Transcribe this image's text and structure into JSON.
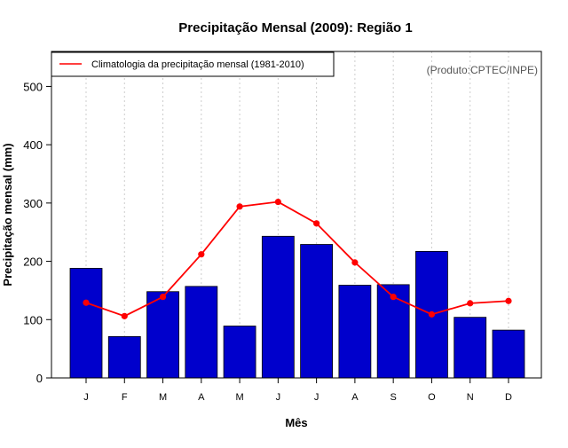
{
  "chart_data": {
    "type": "bar",
    "title": "Precipitação Mensal (2009): Região 1",
    "xlabel": "Mês",
    "ylabel": "Precipitação mensal (mm)",
    "ylim": [
      0,
      560
    ],
    "yticks": [
      0,
      100,
      200,
      300,
      400,
      500
    ],
    "grid": "vertical-dotted",
    "categories": [
      "J",
      "F",
      "M",
      "A",
      "M",
      "J",
      "J",
      "A",
      "S",
      "O",
      "N",
      "D"
    ],
    "series": [
      {
        "name": "Precipitação mensal (2009)",
        "kind": "bar",
        "color": "#0000cc",
        "values": [
          188,
          71,
          148,
          157,
          89,
          243,
          229,
          159,
          160,
          217,
          104,
          82
        ]
      },
      {
        "name": "Climatologia da precipitação mensal (1981-2010)",
        "kind": "line",
        "color": "#ff0000",
        "values": [
          129,
          106,
          139,
          212,
          294,
          302,
          265,
          198,
          139,
          109,
          128,
          132
        ]
      }
    ],
    "legend": {
      "position": "top-left",
      "entries": [
        "Climatologia da precipitação mensal (1981-2010)"
      ]
    },
    "annotation": "(Produto:CPTEC/INPE)"
  }
}
